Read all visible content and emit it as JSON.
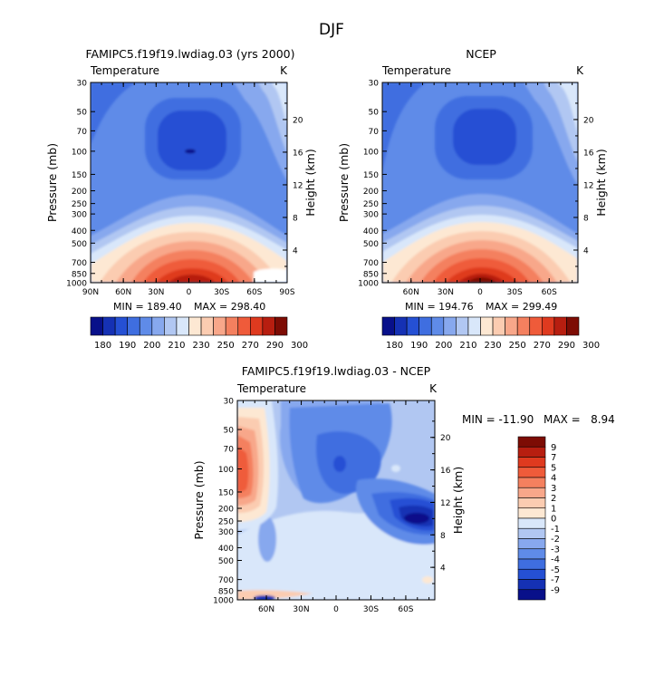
{
  "figure": {
    "title": "DJF"
  },
  "chart_data": [
    {
      "type": "heatmap",
      "id": "model",
      "title": "FAMIPC5.f19f19.lwdiag.03 (yrs 2000)",
      "subtitle_left": "Temperature",
      "subtitle_right": "K",
      "ylabel": "Pressure (mb)",
      "ylabel_right": "Height (km)",
      "x_ticks": [
        "90N",
        "60N",
        "30N",
        "0",
        "30S",
        "60S",
        "90S"
      ],
      "y_ticks": [
        "30",
        "50",
        "70",
        "100",
        "150",
        "200",
        "250",
        "300",
        "400",
        "500",
        "700",
        "850",
        "1000"
      ],
      "height_ticks": [
        "20",
        "16",
        "12",
        "8",
        "4"
      ],
      "min_label": "MIN = 189.40",
      "max_label": "MAX = 298.40",
      "colorbar_labels": [
        "180",
        "190",
        "200",
        "210",
        "230",
        "250",
        "270",
        "290",
        "300"
      ]
    },
    {
      "type": "heatmap",
      "id": "obs",
      "title": "NCEP",
      "subtitle_left": "Temperature",
      "subtitle_right": "K",
      "ylabel": "Pressure (mb)",
      "ylabel_right": "Height (km)",
      "x_ticks": [
        "60N",
        "30N",
        "0",
        "30S",
        "60S"
      ],
      "y_ticks": [
        "30",
        "50",
        "70",
        "100",
        "150",
        "200",
        "250",
        "300",
        "400",
        "500",
        "700",
        "850",
        "1000"
      ],
      "height_ticks": [
        "20",
        "16",
        "12",
        "8",
        "4"
      ],
      "min_label": "MIN = 194.76",
      "max_label": "MAX = 299.49",
      "colorbar_labels": [
        "180",
        "190",
        "200",
        "210",
        "230",
        "250",
        "270",
        "290",
        "300"
      ]
    },
    {
      "type": "heatmap",
      "id": "diff",
      "title": "FAMIPC5.f19f19.lwdiag.03 - NCEP",
      "subtitle_left": "Temperature",
      "subtitle_right": "K",
      "ylabel": "Pressure (mb)",
      "ylabel_right": "Height (km)",
      "x_ticks": [
        "60N",
        "30N",
        "0",
        "30S",
        "60S"
      ],
      "y_ticks": [
        "30",
        "50",
        "70",
        "100",
        "150",
        "200",
        "250",
        "300",
        "400",
        "500",
        "700",
        "850",
        "1000"
      ],
      "height_ticks": [
        "20",
        "16",
        "12",
        "8",
        "4"
      ],
      "min_label": "MIN = -11.90",
      "max_label": "MAX =   8.94",
      "colorbar_labels": [
        "9",
        "7",
        "5",
        "4",
        "3",
        "2",
        "1",
        "0",
        "-1",
        "-2",
        "-3",
        "-4",
        "-5",
        "-7",
        "-9"
      ]
    }
  ],
  "colors": {
    "abs_scale": [
      "#08108a",
      "#1531b4",
      "#2550d4",
      "#3f6ee0",
      "#5f8be8",
      "#87a8ee",
      "#b1c7f2",
      "#d9e7fa",
      "#fde8d3",
      "#fbccb1",
      "#f8a78a",
      "#f4805f",
      "#ef5b3a",
      "#df3a1f",
      "#b71e10",
      "#7d0c04"
    ],
    "diff_scale": [
      "#7d0c04",
      "#b71e10",
      "#df3a1f",
      "#ef5b3a",
      "#f4805f",
      "#f8a78a",
      "#fbccb1",
      "#fde8d3",
      "#d9e7fa",
      "#b1c7f2",
      "#87a8ee",
      "#5f8be8",
      "#3f6ee0",
      "#2550d4",
      "#1531b4",
      "#08108a"
    ]
  }
}
